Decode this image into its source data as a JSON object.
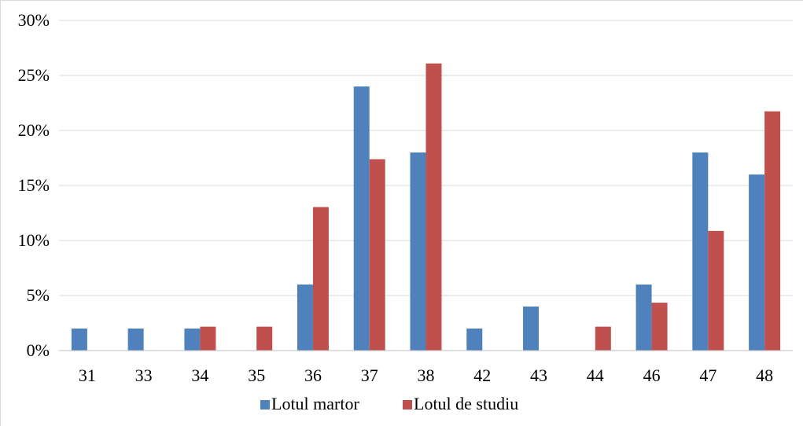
{
  "chart_data": {
    "type": "bar",
    "categories": [
      "31",
      "33",
      "34",
      "35",
      "36",
      "37",
      "38",
      "42",
      "43",
      "44",
      "46",
      "47",
      "48"
    ],
    "series": [
      {
        "name": "Lotul martor",
        "color": "#4F81BD",
        "values": [
          2,
          2,
          2,
          0,
          6,
          24,
          18,
          2,
          4,
          0,
          6,
          18,
          16
        ]
      },
      {
        "name": "Lotul de studiu",
        "color": "#C0504D",
        "values": [
          0,
          0,
          2.17,
          2.17,
          13.04,
          17.39,
          26.09,
          0,
          0,
          2.17,
          4.35,
          10.87,
          21.74
        ]
      }
    ],
    "ylim": [
      0,
      30
    ],
    "yticks": [
      0,
      5,
      10,
      15,
      20,
      25,
      30
    ],
    "ytick_labels": [
      "0%",
      "5%",
      "10%",
      "15%",
      "20%",
      "25%",
      "30%"
    ],
    "grid": true,
    "legend_position": "bottom",
    "gridline_color": "#d9d9d9",
    "axis_color": "#bfbfbf"
  }
}
